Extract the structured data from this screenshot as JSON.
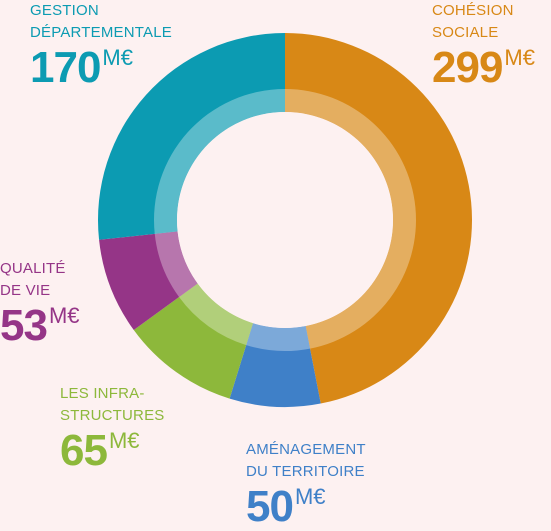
{
  "chart_data": {
    "type": "pie",
    "segments": [
      {
        "name_lines": [
          "COHÉSION",
          "SOCIALE"
        ],
        "value": 299,
        "value_text": "299",
        "unit": "M€",
        "color": "#d88816"
      },
      {
        "name_lines": [
          "AMÉNAGEMENT",
          "DU TERRITOIRE"
        ],
        "value": 50,
        "value_text": "50",
        "unit": "M€",
        "color": "#3f80c8"
      },
      {
        "name_lines": [
          "LES INFRA-",
          "STRUCTURES"
        ],
        "value": 65,
        "value_text": "65",
        "unit": "M€",
        "color": "#8db83b"
      },
      {
        "name_lines": [
          "QUALITÉ",
          "DE VIE"
        ],
        "value": 53,
        "value_text": "53",
        "unit": "M€",
        "color": "#953587"
      },
      {
        "name_lines": [
          "GESTION",
          "DÉPARTEMENTALE"
        ],
        "value": 170,
        "value_text": "170",
        "unit": "M€",
        "color": "#0c9bb2"
      }
    ]
  }
}
